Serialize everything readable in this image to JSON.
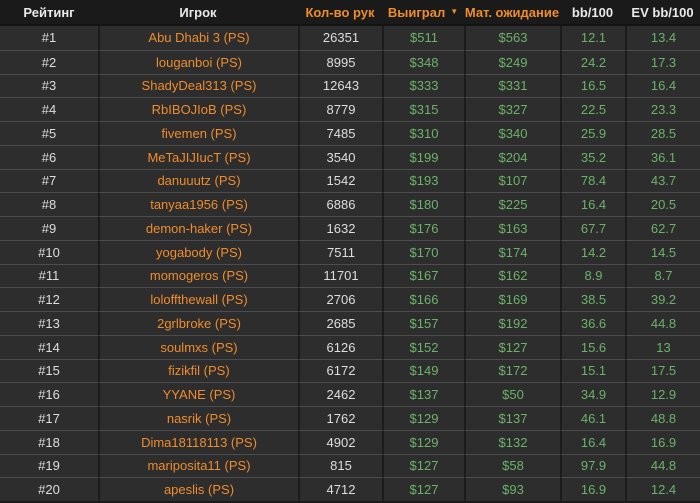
{
  "theme": {
    "accent_orange": "#ef8c2d",
    "value_green": "#6cb26a",
    "text_light": "#e9e9e9",
    "header_bg": "#1a1a1a",
    "row_bg": "#2d2d2d",
    "row_divider": "#4d4d4d",
    "column_divider": "#1c1c1c"
  },
  "table": {
    "sort_icon": "▼",
    "columns": [
      {
        "label": "Рейтинг"
      },
      {
        "label": "Игрок"
      },
      {
        "label": "Кол-во рук"
      },
      {
        "label": "Выиграл"
      },
      {
        "label": "Мат. ожидание"
      },
      {
        "label": "bb/100"
      },
      {
        "label": "EV bb/100"
      }
    ],
    "rows": [
      {
        "rank": "#1",
        "player": "Abu Dhabi 3 (PS)",
        "hands": "26351",
        "won": "$511",
        "expectation": "$563",
        "bb100": "12.1",
        "ev_bb100": "13.4"
      },
      {
        "rank": "#2",
        "player": "louganboi (PS)",
        "hands": "8995",
        "won": "$348",
        "expectation": "$249",
        "bb100": "24.2",
        "ev_bb100": "17.3"
      },
      {
        "rank": "#3",
        "player": "ShadyDeal313 (PS)",
        "hands": "12643",
        "won": "$333",
        "expectation": "$331",
        "bb100": "16.5",
        "ev_bb100": "16.4"
      },
      {
        "rank": "#4",
        "player": "RbIBOJIoB (PS)",
        "hands": "8779",
        "won": "$315",
        "expectation": "$327",
        "bb100": "22.5",
        "ev_bb100": "23.3"
      },
      {
        "rank": "#5",
        "player": "fivemen (PS)",
        "hands": "7485",
        "won": "$310",
        "expectation": "$340",
        "bb100": "25.9",
        "ev_bb100": "28.5"
      },
      {
        "rank": "#6",
        "player": "MeTaJIJIucT (PS)",
        "hands": "3540",
        "won": "$199",
        "expectation": "$204",
        "bb100": "35.2",
        "ev_bb100": "36.1"
      },
      {
        "rank": "#7",
        "player": "danuuutz (PS)",
        "hands": "1542",
        "won": "$193",
        "expectation": "$107",
        "bb100": "78.4",
        "ev_bb100": "43.7"
      },
      {
        "rank": "#8",
        "player": "tanyaa1956 (PS)",
        "hands": "6886",
        "won": "$180",
        "expectation": "$225",
        "bb100": "16.4",
        "ev_bb100": "20.5"
      },
      {
        "rank": "#9",
        "player": "demon-haker (PS)",
        "hands": "1632",
        "won": "$176",
        "expectation": "$163",
        "bb100": "67.7",
        "ev_bb100": "62.7"
      },
      {
        "rank": "#10",
        "player": "yogabody (PS)",
        "hands": "7511",
        "won": "$170",
        "expectation": "$174",
        "bb100": "14.2",
        "ev_bb100": "14.5"
      },
      {
        "rank": "#11",
        "player": "momogeros (PS)",
        "hands": "11701",
        "won": "$167",
        "expectation": "$162",
        "bb100": "8.9",
        "ev_bb100": "8.7"
      },
      {
        "rank": "#12",
        "player": "loloffthewall (PS)",
        "hands": "2706",
        "won": "$166",
        "expectation": "$169",
        "bb100": "38.5",
        "ev_bb100": "39.2"
      },
      {
        "rank": "#13",
        "player": "2grlbroke (PS)",
        "hands": "2685",
        "won": "$157",
        "expectation": "$192",
        "bb100": "36.6",
        "ev_bb100": "44.8"
      },
      {
        "rank": "#14",
        "player": "soulmxs (PS)",
        "hands": "6126",
        "won": "$152",
        "expectation": "$127",
        "bb100": "15.6",
        "ev_bb100": "13"
      },
      {
        "rank": "#15",
        "player": "fizikfil (PS)",
        "hands": "6172",
        "won": "$149",
        "expectation": "$172",
        "bb100": "15.1",
        "ev_bb100": "17.5"
      },
      {
        "rank": "#16",
        "player": "YYANE (PS)",
        "hands": "2462",
        "won": "$137",
        "expectation": "$50",
        "bb100": "34.9",
        "ev_bb100": "12.9"
      },
      {
        "rank": "#17",
        "player": "nasrik (PS)",
        "hands": "1762",
        "won": "$129",
        "expectation": "$137",
        "bb100": "46.1",
        "ev_bb100": "48.8"
      },
      {
        "rank": "#18",
        "player": "Dima18118113 (PS)",
        "hands": "4902",
        "won": "$129",
        "expectation": "$132",
        "bb100": "16.4",
        "ev_bb100": "16.9"
      },
      {
        "rank": "#19",
        "player": "mariposita11 (PS)",
        "hands": "815",
        "won": "$127",
        "expectation": "$58",
        "bb100": "97.9",
        "ev_bb100": "44.8"
      },
      {
        "rank": "#20",
        "player": "apeslis (PS)",
        "hands": "4712",
        "won": "$127",
        "expectation": "$93",
        "bb100": "16.9",
        "ev_bb100": "12.4"
      }
    ]
  }
}
